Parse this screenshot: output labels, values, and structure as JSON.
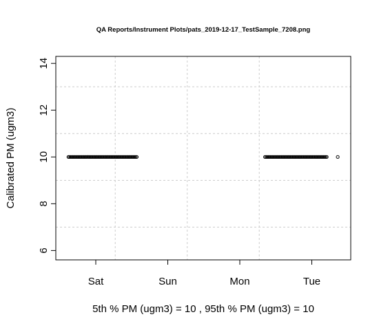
{
  "chart_data": {
    "type": "scatter",
    "title": "QA Reports/Instrument Plots/pats_2019-12-17_TestSample_7208.png",
    "ylabel": "Calibrated PM (ugm3)",
    "xlabel": "5th % PM (ugm3) =  10 , 95th % PM (ugm3)  =  10",
    "ylim": [
      5.6,
      14.3
    ],
    "yticks": [
      6,
      8,
      10,
      12,
      14
    ],
    "x_tick_labels": [
      "Sat",
      "Sun",
      "Mon",
      "Tue"
    ],
    "grid": true,
    "series": [
      {
        "marker": "open-circle",
        "color": "#000000",
        "segments": [
          {
            "x_start_day": -0.38,
            "x_end_day": 0.57,
            "y": 10
          },
          {
            "x_start_day": 2.35,
            "x_end_day": 3.22,
            "y": 10
          }
        ],
        "points": [
          {
            "x_day": 3.36,
            "y": 10
          }
        ]
      }
    ]
  }
}
